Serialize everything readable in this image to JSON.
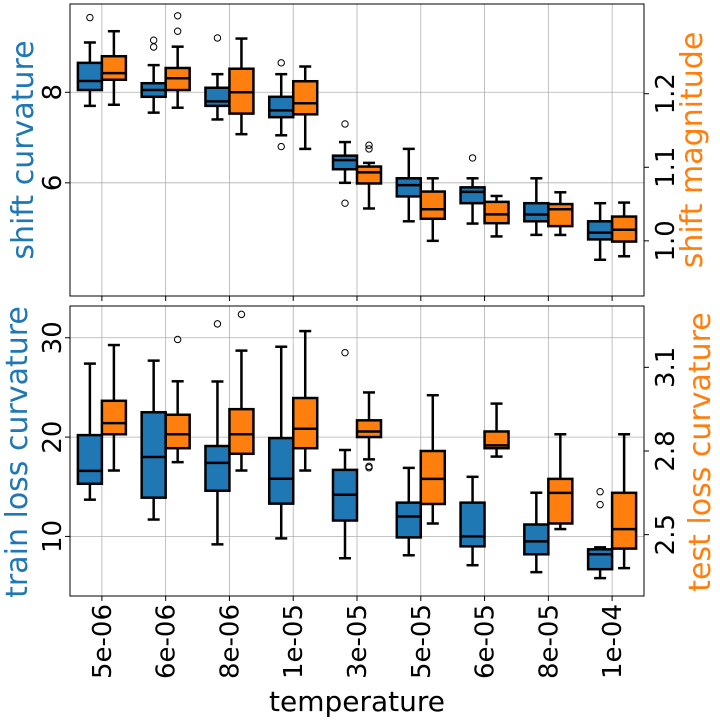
{
  "colors": {
    "series_a": "#1f77b4",
    "series_b": "#ff7f0e",
    "grid": "#b0b0b0",
    "axis": "#000000"
  },
  "chart_data": [
    {
      "type": "box",
      "categories": [
        "5e-06",
        "6e-06",
        "8e-06",
        "1e-05",
        "3e-05",
        "5e-05",
        "6e-05",
        "8e-05",
        "1e-04"
      ],
      "xlabel": "temperature",
      "grid": true,
      "left_axis": {
        "label": "shift curvature",
        "range": [
          3.5,
          9.95
        ],
        "ticks": [
          6,
          8
        ],
        "tick_labels": [
          "6",
          "8"
        ]
      },
      "right_axis": {
        "label": "shift magnitude",
        "range": [
          0.925,
          1.322
        ],
        "ticks": [
          1.0,
          1.1,
          1.2
        ],
        "tick_labels": [
          "1.0",
          "1.1",
          "1.2"
        ]
      },
      "series": [
        {
          "name": "shift curvature",
          "axis": "left",
          "boxes": [
            {
              "whislo": 7.7,
              "q1": 8.05,
              "med": 8.25,
              "q3": 8.65,
              "whishi": 9.1,
              "fliers": [
                9.65
              ]
            },
            {
              "whislo": 7.55,
              "q1": 7.9,
              "med": 8.05,
              "q3": 8.2,
              "whishi": 8.6,
              "fliers": [
                9.0,
                9.15
              ]
            },
            {
              "whislo": 7.4,
              "q1": 7.7,
              "med": 7.8,
              "q3": 8.1,
              "whishi": 8.4,
              "fliers": [
                9.2
              ]
            },
            {
              "whislo": 7.05,
              "q1": 7.45,
              "med": 7.6,
              "q3": 7.9,
              "whishi": 8.4,
              "fliers": [
                6.8,
                8.65
              ]
            },
            {
              "whislo": 6.0,
              "q1": 6.3,
              "med": 6.5,
              "q3": 6.6,
              "whishi": 6.9,
              "fliers": [
                5.55,
                7.3
              ]
            },
            {
              "whislo": 5.15,
              "q1": 5.7,
              "med": 5.95,
              "q3": 6.1,
              "whishi": 6.75,
              "fliers": []
            },
            {
              "whislo": 5.1,
              "q1": 5.55,
              "med": 5.8,
              "q3": 5.9,
              "whishi": 6.1,
              "fliers": [
                6.55
              ]
            },
            {
              "whislo": 4.85,
              "q1": 5.15,
              "med": 5.3,
              "q3": 5.55,
              "whishi": 6.1,
              "fliers": []
            },
            {
              "whislo": 4.3,
              "q1": 4.75,
              "med": 4.9,
              "q3": 5.15,
              "whishi": 5.55,
              "fliers": []
            }
          ]
        },
        {
          "name": "shift magnitude",
          "axis": "right",
          "boxes": [
            {
              "whislo": 1.185,
              "q1": 1.219,
              "med": 1.228,
              "q3": 1.251,
              "whishi": 1.285,
              "fliers": []
            },
            {
              "whislo": 1.181,
              "q1": 1.205,
              "med": 1.221,
              "q3": 1.235,
              "whishi": 1.264,
              "fliers": [
                1.285,
                1.306
              ]
            },
            {
              "whislo": 1.145,
              "q1": 1.173,
              "med": 1.202,
              "q3": 1.234,
              "whishi": 1.275,
              "fliers": []
            },
            {
              "whislo": 1.125,
              "q1": 1.172,
              "med": 1.187,
              "q3": 1.217,
              "whishi": 1.237,
              "fliers": []
            },
            {
              "whislo": 1.044,
              "q1": 1.078,
              "med": 1.093,
              "q3": 1.101,
              "whishi": 1.106,
              "fliers": [
                1.125,
                1.13
              ]
            },
            {
              "whislo": 1.0,
              "q1": 1.03,
              "med": 1.043,
              "q3": 1.067,
              "whishi": 1.085,
              "fliers": []
            },
            {
              "whislo": 1.006,
              "q1": 1.024,
              "med": 1.036,
              "q3": 1.053,
              "whishi": 1.061,
              "fliers": []
            },
            {
              "whislo": 1.008,
              "q1": 1.02,
              "med": 1.043,
              "q3": 1.05,
              "whishi": 1.066,
              "fliers": []
            },
            {
              "whislo": 0.979,
              "q1": 0.999,
              "med": 1.015,
              "q3": 1.033,
              "whishi": 1.052,
              "fliers": []
            }
          ]
        }
      ]
    },
    {
      "type": "box",
      "categories": [
        "5e-06",
        "6e-06",
        "8e-06",
        "1e-05",
        "3e-05",
        "5e-05",
        "6e-05",
        "8e-05",
        "1e-04"
      ],
      "xlabel": "temperature",
      "grid": true,
      "left_axis": {
        "label": "train loss curvature",
        "range": [
          4.0,
          33.2
        ],
        "ticks": [
          10,
          20,
          30
        ],
        "tick_labels": [
          "10",
          "20",
          "30"
        ]
      },
      "right_axis": {
        "label": "test loss curvature",
        "range": [
          2.28,
          3.32
        ],
        "ticks": [
          2.5,
          2.8,
          3.1
        ],
        "tick_labels": [
          "2.5",
          "2.8",
          "3.1"
        ]
      },
      "series": [
        {
          "name": "train loss curvature",
          "axis": "left",
          "boxes": [
            {
              "whislo": 13.7,
              "q1": 15.3,
              "med": 16.6,
              "q3": 20.2,
              "whishi": 27.4,
              "fliers": []
            },
            {
              "whislo": 11.7,
              "q1": 13.9,
              "med": 18.0,
              "q3": 22.5,
              "whishi": 27.7,
              "fliers": []
            },
            {
              "whislo": 9.2,
              "q1": 14.6,
              "med": 17.4,
              "q3": 19.1,
              "whishi": 25.6,
              "fliers": [
                31.4
              ]
            },
            {
              "whislo": 9.8,
              "q1": 13.3,
              "med": 15.8,
              "q3": 19.9,
              "whishi": 29.1,
              "fliers": []
            },
            {
              "whislo": 7.8,
              "q1": 11.6,
              "med": 14.2,
              "q3": 16.7,
              "whishi": 18.7,
              "fliers": [
                28.5
              ]
            },
            {
              "whislo": 8.1,
              "q1": 9.9,
              "med": 12.0,
              "q3": 13.4,
              "whishi": 16.9,
              "fliers": []
            },
            {
              "whislo": 7.1,
              "q1": 9.0,
              "med": 10.0,
              "q3": 13.4,
              "whishi": 16.0,
              "fliers": []
            },
            {
              "whislo": 6.4,
              "q1": 8.2,
              "med": 9.5,
              "q3": 11.2,
              "whishi": 14.4,
              "fliers": []
            },
            {
              "whislo": 5.8,
              "q1": 6.7,
              "med": 8.2,
              "q3": 8.7,
              "whishi": 8.9,
              "fliers": [
                13.2,
                14.5
              ]
            }
          ]
        },
        {
          "name": "test loss curvature",
          "axis": "right",
          "boxes": [
            {
              "whislo": 2.73,
              "q1": 2.86,
              "med": 2.9,
              "q3": 2.98,
              "whishi": 3.18,
              "fliers": []
            },
            {
              "whislo": 2.76,
              "q1": 2.81,
              "med": 2.86,
              "q3": 2.93,
              "whishi": 3.05,
              "fliers": [
                3.2
              ]
            },
            {
              "whislo": 2.73,
              "q1": 2.79,
              "med": 2.86,
              "q3": 2.95,
              "whishi": 3.16,
              "fliers": [
                3.29
              ]
            },
            {
              "whislo": 2.73,
              "q1": 2.81,
              "med": 2.88,
              "q3": 2.99,
              "whishi": 3.23,
              "fliers": []
            },
            {
              "whislo": 2.77,
              "q1": 2.85,
              "med": 2.87,
              "q3": 2.91,
              "whishi": 3.01,
              "fliers": [
                2.74,
                2.745
              ]
            },
            {
              "whislo": 2.54,
              "q1": 2.61,
              "med": 2.7,
              "q3": 2.8,
              "whishi": 3.0,
              "fliers": []
            },
            {
              "whislo": 2.78,
              "q1": 2.81,
              "med": 2.82,
              "q3": 2.87,
              "whishi": 2.97,
              "fliers": []
            },
            {
              "whislo": 2.52,
              "q1": 2.54,
              "med": 2.65,
              "q3": 2.7,
              "whishi": 2.86,
              "fliers": []
            },
            {
              "whislo": 2.38,
              "q1": 2.45,
              "med": 2.52,
              "q3": 2.65,
              "whishi": 2.86,
              "fliers": []
            }
          ]
        }
      ]
    }
  ]
}
